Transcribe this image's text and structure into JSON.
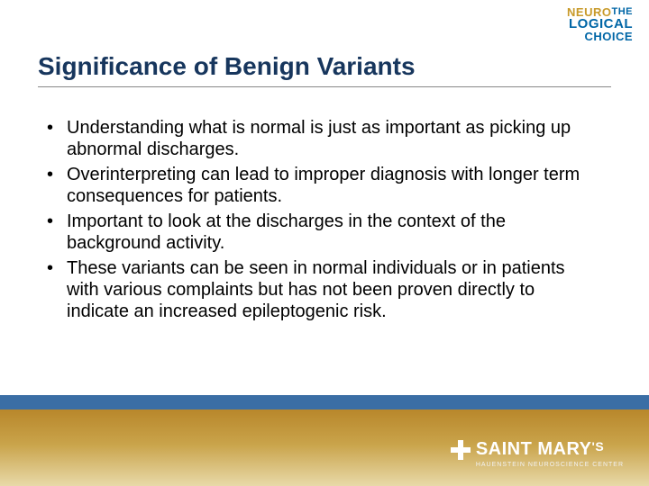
{
  "topLogo": {
    "the": "THE",
    "line1": "NEURO",
    "line2": "LOGICAL",
    "line3": "CHOICE"
  },
  "title": "Significance of Benign Variants",
  "bullets": [
    "Understanding what is normal is just as important as picking up abnormal discharges.",
    "Overinterpreting can lead to improper diagnosis with longer term consequences for patients.",
    "Important to look at the discharges in the context of the background activity.",
    "These variants can be seen in normal individuals or in patients with various complaints but has not been proven directly to indicate an increased epileptogenic risk."
  ],
  "footerLogo": {
    "name": "SAINT MARY",
    "apostropheS": "'S",
    "subtitle": "HAUENSTEIN NEUROSCIENCE CENTER"
  },
  "colors": {
    "titleColor": "#17365d",
    "blueBand": "#3b6ea5",
    "goldTop": "#b8872b",
    "goldBottom": "#e8d9a8",
    "logoGold": "#c89a2a",
    "logoBlue": "#0066a6"
  }
}
